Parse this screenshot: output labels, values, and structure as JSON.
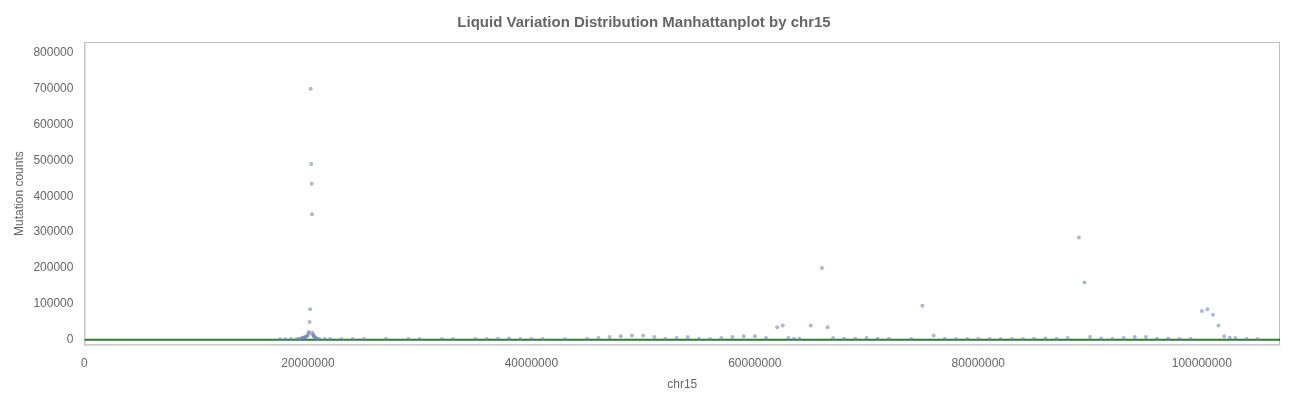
{
  "chart_data": {
    "type": "scatter",
    "title": "Liquid Variation Distribution Manhattanplot by chr15",
    "xlabel": "chr15",
    "ylabel": "Mutation counts",
    "xlim": [
      0,
      107000000
    ],
    "ylim": [
      -15000,
      830000
    ],
    "xticks": [
      0,
      20000000,
      40000000,
      60000000,
      80000000,
      100000000
    ],
    "yticks": [
      0,
      100000,
      200000,
      300000,
      400000,
      500000,
      600000,
      700000,
      800000
    ],
    "color": "#6b7db3",
    "grid": false,
    "reference_lines": [
      {
        "y": 0,
        "color": "#2e7d32"
      }
    ],
    "x": [
      17500000,
      18000000,
      18500000,
      19000000,
      19200000,
      19400000,
      19500000,
      19600000,
      19700000,
      19800000,
      19900000,
      20000000,
      20050000,
      20100000,
      20150000,
      20200000,
      20250000,
      20300000,
      20330000,
      20370000,
      20400000,
      20450000,
      20500000,
      20550000,
      20600000,
      20700000,
      20800000,
      21000000,
      21500000,
      22000000,
      23000000,
      24000000,
      25000000,
      27000000,
      29000000,
      30000000,
      32000000,
      33000000,
      35000000,
      36000000,
      37000000,
      38000000,
      39000000,
      40000000,
      41000000,
      43000000,
      45000000,
      46000000,
      47000000,
      48000000,
      49000000,
      50000000,
      51000000,
      52000000,
      53000000,
      54000000,
      55000000,
      56000000,
      57000000,
      58000000,
      59000000,
      60000000,
      61000000,
      62000000,
      62500000,
      63000000,
      63500000,
      64000000,
      65000000,
      66000000,
      66500000,
      67000000,
      68000000,
      69000000,
      70000000,
      71000000,
      72000000,
      74000000,
      75000000,
      76000000,
      77000000,
      78000000,
      79000000,
      80000000,
      81000000,
      82000000,
      83000000,
      84000000,
      85000000,
      86000000,
      87000000,
      88000000,
      89000000,
      89500000,
      90000000,
      91000000,
      92000000,
      93000000,
      94000000,
      95000000,
      96000000,
      97000000,
      98000000,
      99000000,
      100000000,
      100500000,
      101000000,
      101500000,
      102000000,
      102500000,
      103000000,
      104000000,
      105000000
    ],
    "values": [
      1500,
      1500,
      2000,
      2500,
      3000,
      4000,
      5000,
      6000,
      7000,
      8000,
      10000,
      13000,
      18000,
      22000,
      50000,
      85000,
      700000,
      490000,
      435000,
      350000,
      20000,
      15000,
      12000,
      9000,
      7000,
      5000,
      4000,
      3000,
      2000,
      2000,
      1500,
      2000,
      2500,
      3000,
      2000,
      2000,
      2500,
      2000,
      2000,
      2000,
      3000,
      3500,
      2000,
      2500,
      2000,
      1500,
      2000,
      5000,
      8000,
      10000,
      12000,
      12000,
      8000,
      3000,
      5000,
      8000,
      3000,
      2000,
      5000,
      8000,
      10000,
      10000,
      5000,
      35000,
      40000,
      5000,
      3000,
      3000,
      40000,
      200000,
      35000,
      5000,
      3000,
      3000,
      5000,
      3000,
      3000,
      2000,
      95000,
      12000,
      3000,
      2500,
      2000,
      2000,
      2000,
      2000,
      2000,
      2000,
      3000,
      4000,
      3000,
      5000,
      285000,
      160000,
      8000,
      4000,
      2000,
      5000,
      8000,
      8000,
      3000,
      3000,
      2500,
      2500,
      80000,
      85000,
      70000,
      40000,
      10000,
      6000,
      5000,
      3000,
      2000
    ]
  }
}
